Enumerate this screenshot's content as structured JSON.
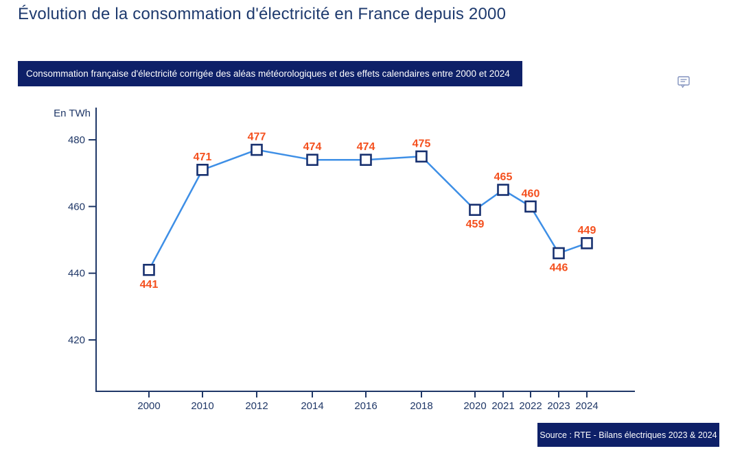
{
  "page": {
    "title": "Évolution de la consommation d'électricité en France depuis 2000"
  },
  "banner": {
    "text": "Consommation française d'électricité corrigée des aléas météorologiques et des effets calendaires entre 2000 et 2024"
  },
  "annotation_icon": "comment-icon",
  "source": {
    "text": "Source : RTE - Bilans électriques 2023 & 2024"
  },
  "chart_data": {
    "type": "line",
    "title": "Consommation française d'électricité corrigée des aléas météorologiques et des effets calendaires entre 2000 et 2024",
    "unit_label": "En TWh",
    "categories": [
      "2000",
      "2010",
      "2012",
      "2014",
      "2016",
      "2018",
      "2020",
      "2021",
      "2022",
      "2023",
      "2024"
    ],
    "values": [
      441,
      471,
      477,
      474,
      474,
      475,
      459,
      465,
      460,
      446,
      449
    ],
    "label_positions": [
      "below",
      "above",
      "above",
      "above",
      "above",
      "above",
      "below",
      "above",
      "above",
      "below",
      "above"
    ],
    "yticks": [
      480,
      460,
      440,
      420
    ],
    "ylim": [
      405,
      490
    ],
    "grid": false,
    "legend": "none",
    "marker": "square",
    "xlabel": "",
    "ylabel": "En TWh",
    "colors": {
      "line": "#3E8FE6",
      "marker_fill": "#FFFFFF",
      "marker_border": "#17306F",
      "data_label": "#F4501E",
      "axis": "#1F3767",
      "banner_bg": "#0E2068",
      "banner_text": "#FFFFFF",
      "title_text": "#1E3A6E",
      "icon": "#8191BD"
    }
  }
}
